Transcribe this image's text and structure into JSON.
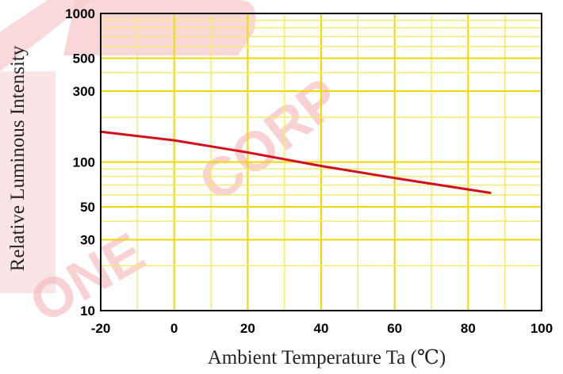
{
  "chart_data": {
    "type": "line",
    "title": "",
    "xlabel": "Ambient Temperature Ta (℃)",
    "ylabel": "Relative Luminous Intensity",
    "x_scale": "linear",
    "y_scale": "log",
    "xlim": [
      -20,
      100
    ],
    "ylim": [
      10,
      1000
    ],
    "x_ticks": [
      -20,
      0,
      20,
      40,
      60,
      80,
      100
    ],
    "x_tick_labels": [
      "-20",
      "0",
      "20",
      "40",
      "60",
      "80",
      "100"
    ],
    "y_ticks": [
      10,
      30,
      50,
      100,
      300,
      500,
      1000
    ],
    "y_tick_labels": [
      "10",
      "30",
      "50",
      "100",
      "300",
      "500",
      "1000"
    ],
    "grid": true,
    "series": [
      {
        "x": [
          -20,
          0,
          20,
          40,
          60,
          86
        ],
        "y": [
          160,
          140,
          116,
          94,
          78,
          62
        ]
      }
    ],
    "colors": {
      "line": "#d0101c",
      "major_grid": "#f0d800",
      "minor_grid": "#f5e96e",
      "frame": "#000000"
    }
  }
}
